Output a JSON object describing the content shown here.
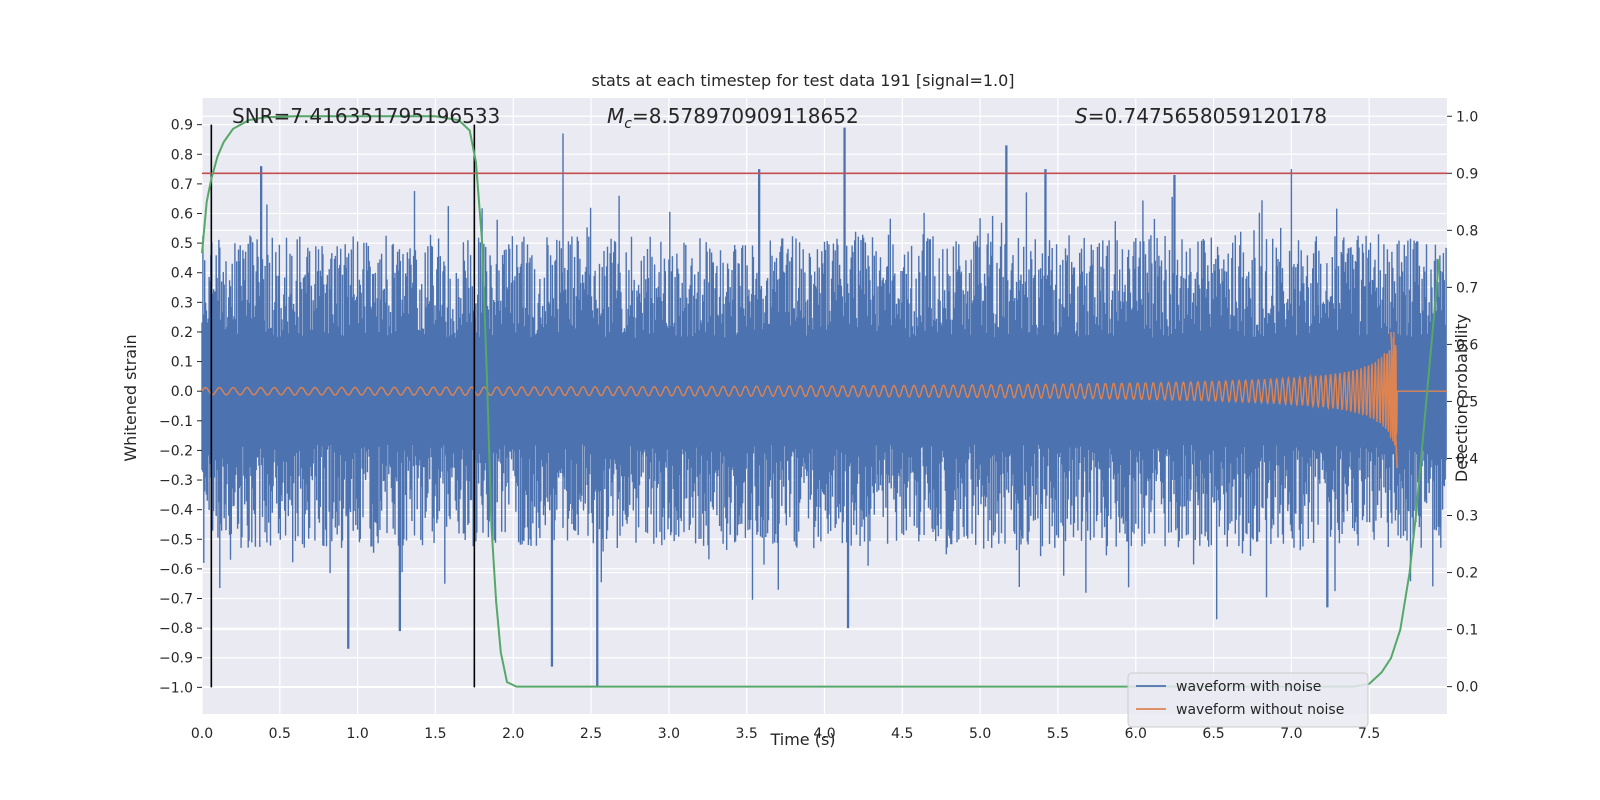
{
  "chart_data": {
    "type": "line",
    "title": "stats at each timestep for test data 191 [signal=1.0]",
    "xlabel": "Time (s)",
    "ylabel": "Whitened strain",
    "y2label": "Detection probability",
    "xlim": [
      0.0,
      8.0
    ],
    "ylim": [
      -1.09,
      0.99
    ],
    "y2lim": [
      -0.048,
      1.032
    ],
    "x_ticks": [
      "0.0",
      "0.5",
      "1.0",
      "1.5",
      "2.0",
      "2.5",
      "3.0",
      "3.5",
      "4.0",
      "4.5",
      "5.0",
      "5.5",
      "6.0",
      "6.5",
      "7.0",
      "7.5"
    ],
    "y_ticks": [
      "0.9",
      "0.8",
      "0.7",
      "0.6",
      "0.5",
      "0.4",
      "0.3",
      "0.2",
      "0.1",
      "0.0",
      "−0.1",
      "−0.2",
      "−0.3",
      "−0.4",
      "−0.5",
      "−0.6",
      "−0.7",
      "−0.8",
      "−0.9",
      "−1.0"
    ],
    "y2_ticks": [
      "1.0",
      "0.9",
      "0.8",
      "0.7",
      "0.6",
      "0.5",
      "0.4",
      "0.3",
      "0.2",
      "0.1",
      "0.0"
    ],
    "grid": true,
    "legend_position": "bottom-right",
    "annotations": {
      "snr": "SNR=7.416351795196533",
      "mc_symbol": "M",
      "mc_subscript": "c",
      "mc_value": "=8.578970909118652",
      "s_symbol": "S",
      "s_value": "=0.7475658059120178"
    },
    "series": [
      {
        "name": "waveform with noise",
        "color": "#4c72b0",
        "description_values": {
          "t_start": 0.0,
          "t_end": 8.0,
          "typical_upper_envelope": 0.45,
          "typical_lower_envelope": -0.45,
          "spikes": [
            [
              0.38,
              0.76
            ],
            [
              0.94,
              -0.87
            ],
            [
              1.27,
              -0.81
            ],
            [
              2.32,
              0.87
            ],
            [
              2.25,
              -0.93
            ],
            [
              2.54,
              -1.0
            ],
            [
              3.58,
              0.75
            ],
            [
              4.13,
              0.89
            ],
            [
              4.15,
              -0.8
            ],
            [
              5.17,
              0.83
            ],
            [
              5.42,
              0.75
            ],
            [
              6.25,
              0.73
            ],
            [
              6.52,
              -0.77
            ],
            [
              7.0,
              0.75
            ],
            [
              7.23,
              -0.73
            ]
          ]
        }
      },
      {
        "name": "waveform without noise",
        "color": "#dd8452",
        "description_values": {
          "t_start": 0.0,
          "t_merger": 7.68,
          "amplitude_start": 0.012,
          "amplitude_peak": 0.2,
          "peak_min": -0.26
        }
      },
      {
        "name": "detection probability",
        "color": "#55a868",
        "axis": "right",
        "points": [
          [
            0.0,
            0.76
          ],
          [
            0.03,
            0.85
          ],
          [
            0.06,
            0.89
          ],
          [
            0.1,
            0.93
          ],
          [
            0.14,
            0.955
          ],
          [
            0.2,
            0.978
          ],
          [
            0.3,
            0.993
          ],
          [
            0.4,
            0.998
          ],
          [
            0.6,
            1.0
          ],
          [
            1.2,
            1.0
          ],
          [
            1.5,
            1.0
          ],
          [
            1.65,
            0.993
          ],
          [
            1.72,
            0.975
          ],
          [
            1.76,
            0.92
          ],
          [
            1.8,
            0.78
          ],
          [
            1.83,
            0.55
          ],
          [
            1.86,
            0.28
          ],
          [
            1.89,
            0.15
          ],
          [
            1.92,
            0.06
          ],
          [
            1.96,
            0.008
          ],
          [
            2.02,
            0.0
          ],
          [
            3.0,
            0.0
          ],
          [
            5.0,
            0.0
          ],
          [
            7.4,
            0.0
          ],
          [
            7.5,
            0.005
          ],
          [
            7.58,
            0.025
          ],
          [
            7.64,
            0.05
          ],
          [
            7.7,
            0.1
          ],
          [
            7.76,
            0.2
          ],
          [
            7.8,
            0.3
          ],
          [
            7.85,
            0.45
          ],
          [
            7.9,
            0.6
          ],
          [
            7.95,
            0.75
          ]
        ]
      }
    ],
    "threshold_line": {
      "value": 0.9,
      "axis": "right",
      "color": "#c44e52"
    },
    "vertical_markers": [
      {
        "x": 0.06,
        "y_from": -1.0,
        "y_to": 0.9,
        "color": "#000000"
      },
      {
        "x": 1.75,
        "y_from": -1.0,
        "y_to": 0.9,
        "color": "#000000"
      }
    ]
  }
}
